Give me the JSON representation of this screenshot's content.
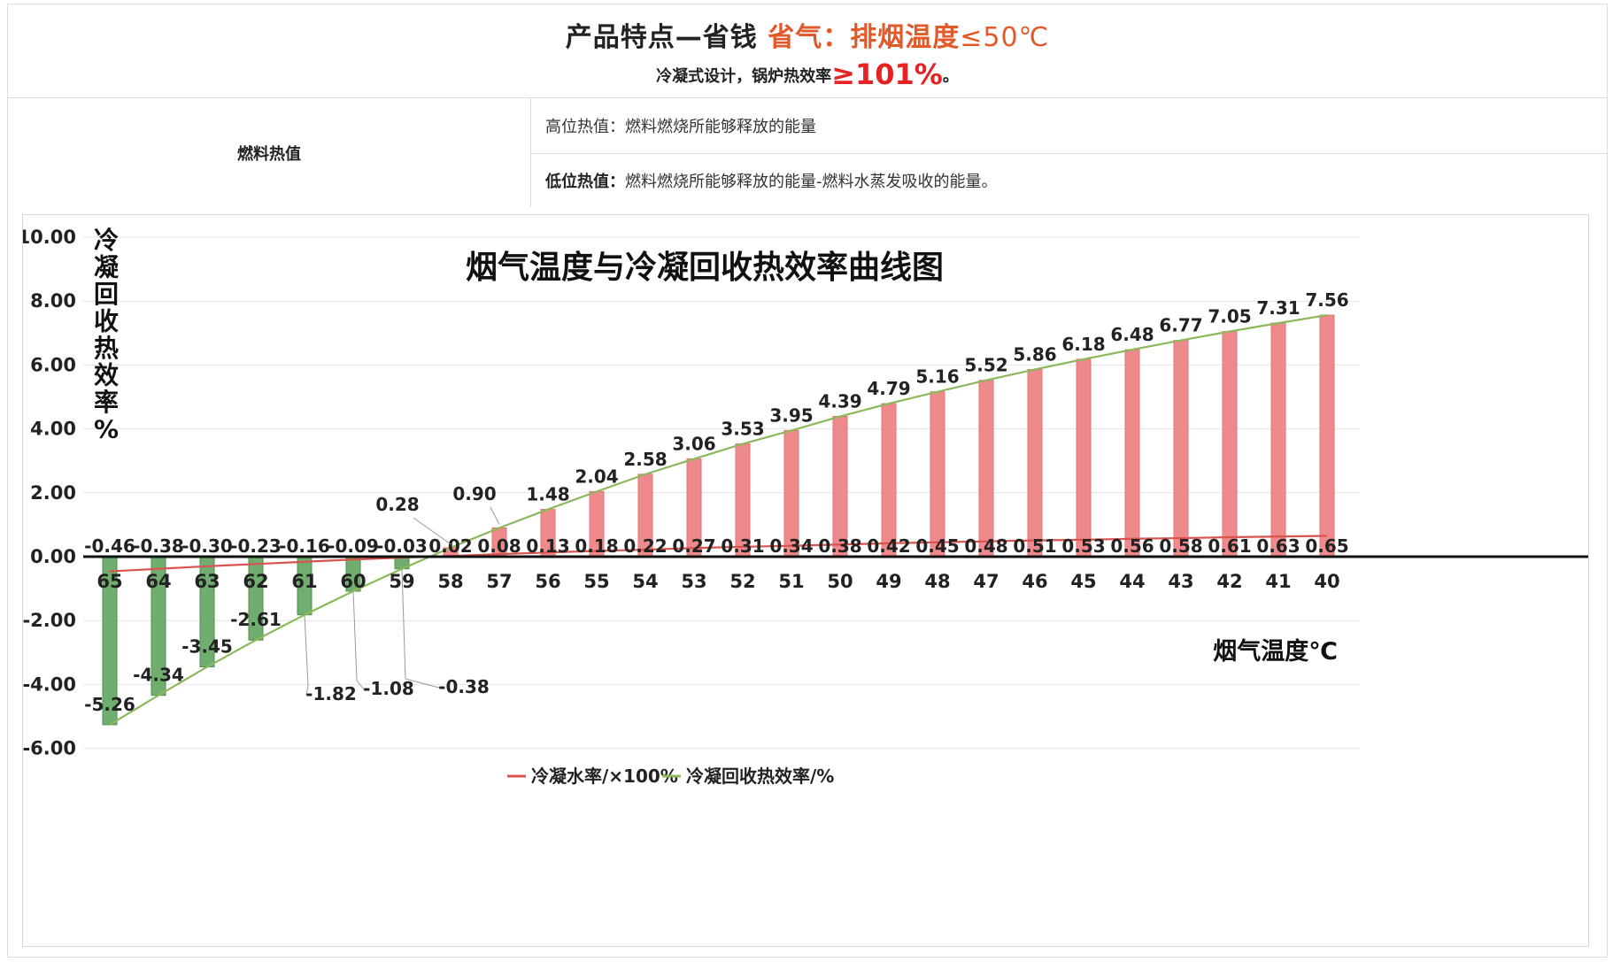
{
  "header": {
    "title_main": "产品特点—省钱",
    "title_highlight": "省气：排烟温度",
    "title_highlight_tail": "≤50℃",
    "subtitle_prefix": "冷凝式设计，锅炉热效率",
    "subtitle_big": "≥101%",
    "subtitle_suffix": "。"
  },
  "fuel_table": {
    "label": "燃料热值",
    "rows": [
      {
        "term": "高位热值：",
        "desc": "燃料燃烧所能够释放的能量"
      },
      {
        "term": "低位热值：",
        "desc": "燃料燃烧所能够释放的能量-燃料水蒸发吸收的能量。"
      }
    ]
  },
  "colors": {
    "bar_positive": "#ef8a8c",
    "bar_negative": "#6fae6f",
    "line_red": "#d9534f",
    "line_green": "#8cb85c",
    "accent_orange": "#e2592a",
    "accent_red": "#e62222"
  },
  "chart_data": {
    "type": "bar",
    "title": "烟气温度与冷凝回收热效率曲线图",
    "ylabel": "冷凝回收热效率%",
    "xlabel": "烟气温度℃",
    "ylim": [
      -6,
      10
    ],
    "yticks": [
      "10.00",
      "8.00",
      "6.00",
      "4.00",
      "2.00",
      "0.00",
      "-2.00",
      "-4.00",
      "-6.00"
    ],
    "categories": [
      "65",
      "64",
      "63",
      "62",
      "61",
      "60",
      "59",
      "58",
      "57",
      "56",
      "55",
      "54",
      "53",
      "52",
      "51",
      "50",
      "49",
      "48",
      "47",
      "46",
      "45",
      "44",
      "43",
      "42",
      "41",
      "40"
    ],
    "series": [
      {
        "name": "冷凝回收热效率/%",
        "kind": "bar+line",
        "values": [
          -5.26,
          -4.34,
          -3.45,
          -2.61,
          -1.82,
          -1.08,
          -0.38,
          0.28,
          0.9,
          1.48,
          2.04,
          2.58,
          3.06,
          3.53,
          3.95,
          4.39,
          4.79,
          5.16,
          5.52,
          5.86,
          6.18,
          6.48,
          6.77,
          7.05,
          7.31,
          7.56
        ],
        "labels": [
          "-5.26",
          "-4.34",
          "-3.45",
          "-2.61",
          "-1.82",
          "-1.08",
          "-0.38",
          "0.28",
          "0.90",
          "1.48",
          "2.04",
          "2.58",
          "3.06",
          "3.53",
          "3.95",
          "4.39",
          "4.79",
          "5.16",
          "5.52",
          "5.86",
          "6.18",
          "6.48",
          "6.77",
          "7.05",
          "7.31",
          "7.56"
        ]
      },
      {
        "name": "冷凝水率/×100%",
        "kind": "line",
        "values": [
          -0.46,
          -0.38,
          -0.3,
          -0.23,
          -0.16,
          -0.09,
          -0.03,
          0.02,
          0.08,
          0.13,
          0.18,
          0.22,
          0.27,
          0.31,
          0.34,
          0.38,
          0.42,
          0.45,
          0.48,
          0.51,
          0.53,
          0.56,
          0.58,
          0.61,
          0.63,
          0.65
        ],
        "labels": [
          "-0.46",
          "-0.38",
          "-0.30",
          "-0.23",
          "-0.16",
          "-0.09",
          "-0.03",
          "0.02",
          "0.08",
          "0.13",
          "0.18",
          "0.22",
          "0.27",
          "0.31",
          "0.34",
          "0.38",
          "0.42",
          "0.45",
          "0.48",
          "0.51",
          "0.53",
          "0.56",
          "0.58",
          "0.61",
          "0.63",
          "0.65"
        ]
      }
    ],
    "legend": [
      "冷凝水率/×100%",
      "冷凝回收热效率/%"
    ],
    "legend_position": "bottom-center",
    "grid": true
  }
}
